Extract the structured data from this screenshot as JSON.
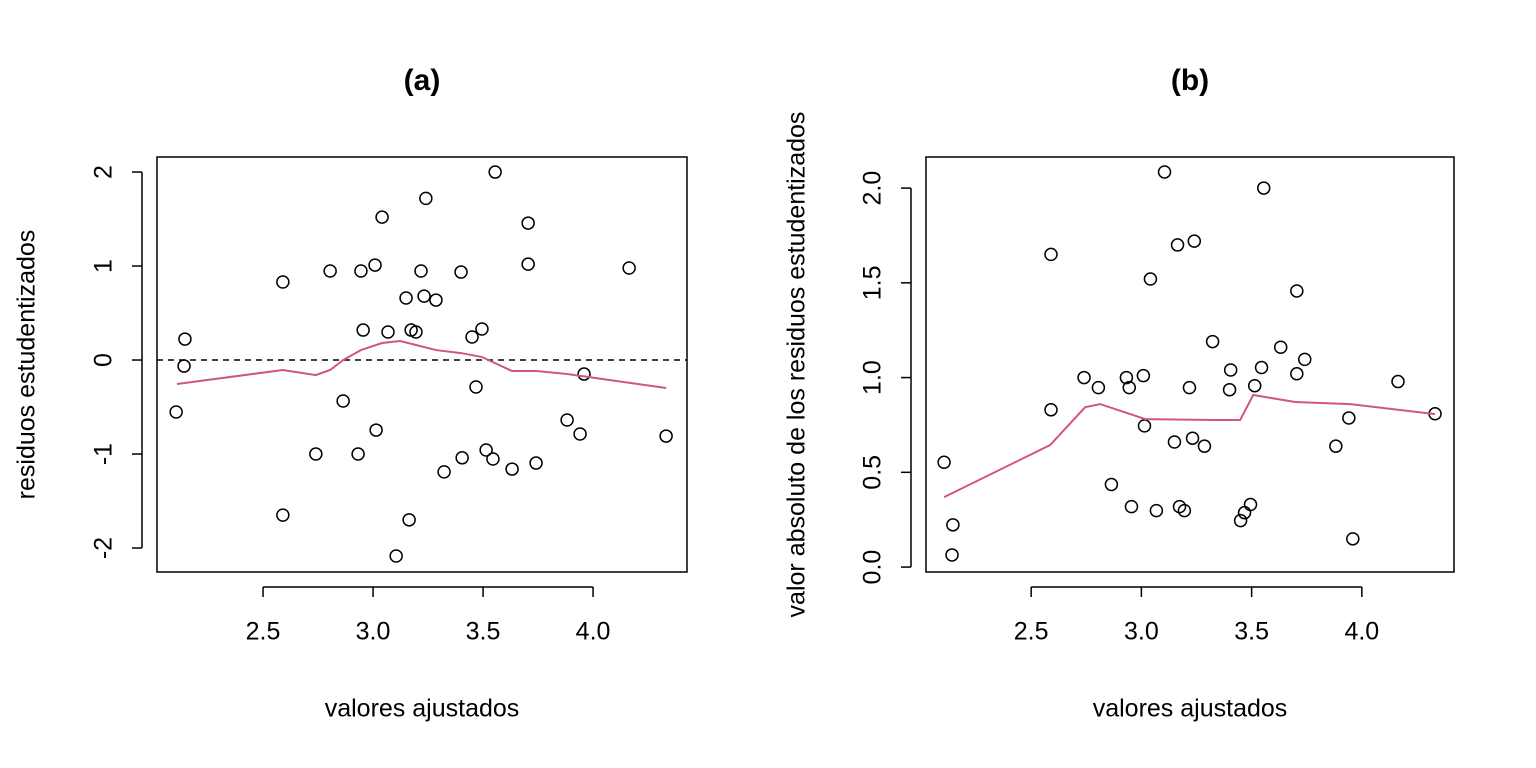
{
  "chart_data": [
    {
      "type": "scatter",
      "title": "(a)",
      "xlabel": "valores ajustados",
      "ylabel": "residuos estudentizados",
      "xlim": [
        2.018,
        4.427
      ],
      "ylim": [
        -2.255,
        2.16
      ],
      "xticks": [
        2.5,
        {
          "value": 3,
          "label": "3.0"
        },
        3.5,
        {
          "value": 4,
          "label": "4.0"
        }
      ],
      "yticks": [
        -2,
        -1,
        0,
        1,
        2
      ],
      "x": [
        2.105,
        2.145,
        2.141,
        2.59,
        2.59,
        2.74,
        2.805,
        2.864,
        2.932,
        2.945,
        2.955,
        3.009,
        3.014,
        3.041,
        3.068,
        3.105,
        3.15,
        3.164,
        3.173,
        3.195,
        3.218,
        3.232,
        3.24,
        3.286,
        3.323,
        3.4,
        3.405,
        3.45,
        3.468,
        3.495,
        3.514,
        3.545,
        3.555,
        3.632,
        3.705,
        3.705,
        3.741,
        3.882,
        3.941,
        3.959,
        4.164,
        4.332
      ],
      "values": [
        -0.553,
        0.223,
        -0.064,
        0.83,
        -1.65,
        -1.0,
        0.947,
        -0.436,
        -1.0,
        0.947,
        0.319,
        1.01,
        -0.745,
        1.52,
        0.298,
        -2.085,
        0.66,
        -1.7,
        0.319,
        0.298,
        0.947,
        0.68,
        1.72,
        0.638,
        -1.19,
        0.936,
        -1.04,
        0.245,
        -0.287,
        0.33,
        -0.957,
        -1.053,
        2.0,
        -1.16,
        1.457,
        1.02,
        -1.096,
        -0.638,
        -0.787,
        -0.149,
        0.979,
        -0.809
      ],
      "smooth_x": [
        2.109,
        2.59,
        2.74,
        2.805,
        2.864,
        2.945,
        3.041,
        3.123,
        3.195,
        3.286,
        3.4,
        3.495,
        3.632,
        3.741,
        3.882,
        4.332
      ],
      "smooth_values": [
        -0.255,
        -0.106,
        -0.16,
        -0.106,
        0,
        0.106,
        0.181,
        0.202,
        0.16,
        0.106,
        0.074,
        0.032,
        -0.117,
        -0.117,
        -0.149,
        -0.298
      ],
      "smooth_color": "#d1567a",
      "hline": 0
    },
    {
      "type": "scatter",
      "title": "(b)",
      "xlabel": "valores ajustados",
      "ylabel": "valor absoluto de los residuos estudentizados",
      "xlim": [
        2.023,
        4.418
      ],
      "ylim": [
        -0.026,
        2.164
      ],
      "xticks": [
        2.5,
        {
          "value": 3,
          "label": "3.0"
        },
        3.5,
        {
          "value": 4,
          "label": "4.0"
        }
      ],
      "yticks": [
        {
          "value": 0,
          "label": "0.0"
        },
        0.5,
        {
          "value": 1,
          "label": "1.0"
        },
        1.5,
        {
          "value": 2,
          "label": "2.0"
        }
      ],
      "x": [
        2.105,
        2.145,
        2.141,
        2.59,
        2.59,
        2.74,
        2.805,
        2.864,
        2.932,
        2.945,
        2.955,
        3.009,
        3.014,
        3.041,
        3.068,
        3.105,
        3.15,
        3.164,
        3.173,
        3.195,
        3.218,
        3.232,
        3.24,
        3.286,
        3.323,
        3.4,
        3.405,
        3.45,
        3.468,
        3.495,
        3.514,
        3.545,
        3.555,
        3.632,
        3.705,
        3.705,
        3.741,
        3.882,
        3.941,
        3.959,
        4.164,
        4.332
      ],
      "values": [
        0.553,
        0.223,
        0.064,
        0.83,
        1.65,
        1.0,
        0.947,
        0.436,
        1.0,
        0.947,
        0.319,
        1.01,
        0.745,
        1.52,
        0.298,
        2.085,
        0.66,
        1.7,
        0.319,
        0.298,
        0.947,
        0.68,
        1.72,
        0.638,
        1.19,
        0.936,
        1.04,
        0.245,
        0.287,
        0.33,
        0.957,
        1.053,
        2.0,
        1.16,
        1.457,
        1.02,
        1.096,
        0.638,
        0.787,
        0.149,
        0.979,
        0.809
      ],
      "smooth_x": [
        2.105,
        2.586,
        2.745,
        2.813,
        3.017,
        3.335,
        3.448,
        3.507,
        3.698,
        3.948,
        4.332
      ],
      "smooth_values": [
        0.369,
        0.644,
        0.844,
        0.86,
        0.781,
        0.776,
        0.776,
        0.908,
        0.871,
        0.86,
        0.807
      ],
      "smooth_color": "#d1567a"
    }
  ]
}
